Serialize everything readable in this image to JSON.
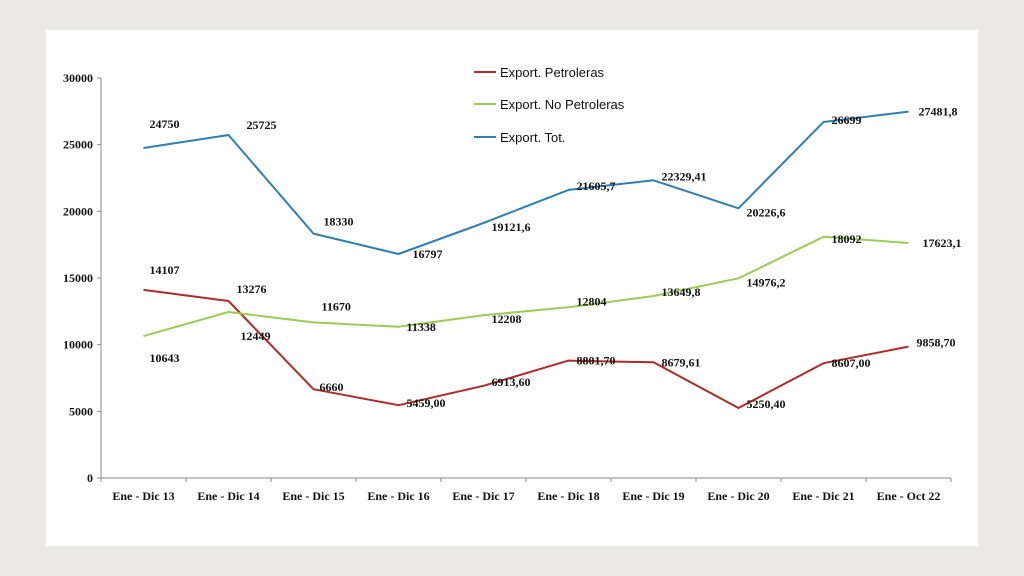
{
  "chart_data": {
    "type": "line",
    "categories": [
      "Ene - Dic 13",
      "Ene - Dic 14",
      "Ene - Dic 15",
      "Ene - Dic 16",
      "Ene - Dic 17",
      "Ene - Dic 18",
      "Ene - Dic 19",
      "Ene - Dic 20",
      "Ene - Dic 21",
      "Ene - Oct 22"
    ],
    "ylim": [
      0,
      30000
    ],
    "yticks": [
      "0",
      "5000",
      "10000",
      "15000",
      "20000",
      "25000",
      "30000"
    ],
    "grid": false,
    "legend_position": "top-center",
    "series": [
      {
        "name": "Export. Petroleras",
        "color": "#b02a27",
        "values": [
          14107,
          13276,
          6660,
          5459.0,
          6913.6,
          8801.7,
          8679.61,
          5250.4,
          8607.0,
          9858.7
        ],
        "labels": [
          "14107",
          "13276",
          "6660",
          "5459,00",
          "6913,60",
          "8801,70",
          "8679,61",
          "5250,40",
          "8607,00",
          "9858,70"
        ]
      },
      {
        "name": "Export. No Petroleras",
        "color": "#9acd52",
        "values": [
          10643,
          12449,
          11670,
          11338,
          12208,
          12804,
          13649.8,
          14976.2,
          18092,
          17623.1
        ],
        "labels": [
          "10643",
          "12449",
          "11670",
          "11338",
          "12208",
          "12804",
          "13649,8",
          "14976,2",
          "18092",
          "17623,1"
        ]
      },
      {
        "name": "Export. Tot.",
        "color": "#2f7fb3",
        "values": [
          24750,
          25725,
          18330,
          16797,
          19121.6,
          21605.7,
          22329.41,
          20226.6,
          26699,
          27481.8
        ],
        "labels": [
          "24750",
          "25725",
          "18330",
          "16797",
          "19121,6",
          "21605,7",
          "22329,41",
          "20226,6",
          "26699",
          "27481,8"
        ]
      }
    ]
  }
}
